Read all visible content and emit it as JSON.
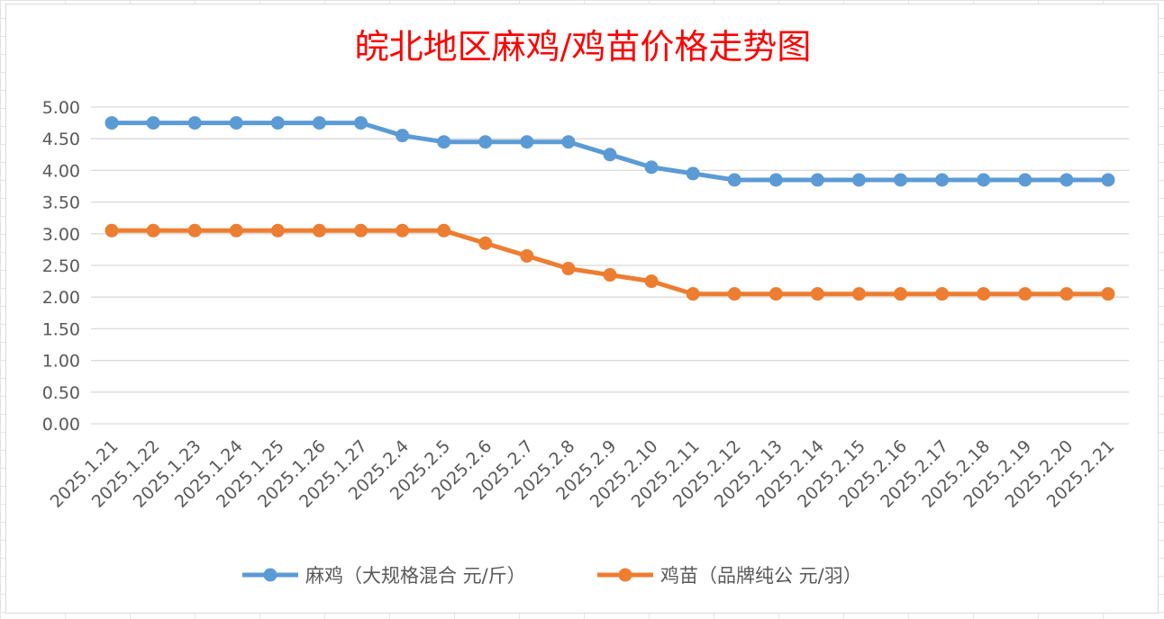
{
  "chart_data": {
    "type": "line",
    "title": "皖北地区麻鸡/鸡苗价格走势图",
    "categories": [
      "2025.1.21",
      "2025.1.22",
      "2025.1.23",
      "2025.1.24",
      "2025.1.25",
      "2025.1.26",
      "2025.1.27",
      "2025.2.4",
      "2025.2.5",
      "2025.2.6",
      "2025.2.7",
      "2025.2.8",
      "2025.2.9",
      "2025.2.10",
      "2025.2.11",
      "2025.2.12",
      "2025.2.13",
      "2025.2.14",
      "2025.2.15",
      "2025.2.16",
      "2025.2.17",
      "2025.2.18",
      "2025.2.19",
      "2025.2.20",
      "2025.2.21"
    ],
    "series": [
      {
        "name": "麻鸡（大规格混合 元/斤）",
        "color": "#5b9bd5",
        "values": [
          4.75,
          4.75,
          4.75,
          4.75,
          4.75,
          4.75,
          4.75,
          4.55,
          4.45,
          4.45,
          4.45,
          4.45,
          4.25,
          4.05,
          3.95,
          3.85,
          3.85,
          3.85,
          3.85,
          3.85,
          3.85,
          3.85,
          3.85,
          3.85,
          3.85
        ]
      },
      {
        "name": "鸡苗（品牌纯公 元/羽）",
        "color": "#ed7d31",
        "values": [
          3.05,
          3.05,
          3.05,
          3.05,
          3.05,
          3.05,
          3.05,
          3.05,
          3.05,
          2.85,
          2.65,
          2.45,
          2.35,
          2.25,
          2.05,
          2.05,
          2.05,
          2.05,
          2.05,
          2.05,
          2.05,
          2.05,
          2.05,
          2.05,
          2.05
        ]
      }
    ],
    "yticks": [
      "0.00",
      "0.50",
      "1.00",
      "1.50",
      "2.00",
      "2.50",
      "3.00",
      "3.50",
      "4.00",
      "4.50",
      "5.00"
    ],
    "ylim": [
      0,
      5
    ],
    "grid": true,
    "legend_position": "bottom"
  }
}
